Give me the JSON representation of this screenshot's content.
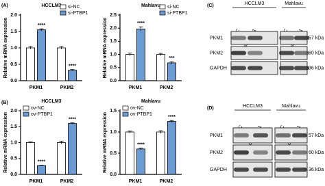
{
  "chart_data": [
    {
      "type": "bar",
      "title": "HCCLM3",
      "y_label": "Relative mRNA expression",
      "categories": [
        "PKM1",
        "PKM2"
      ],
      "series": [
        {
          "name": "si-NC",
          "color": "#ffffff",
          "values": [
            1.0,
            1.0
          ],
          "errors": [
            0.04,
            0.04
          ]
        },
        {
          "name": "si-PTBP1",
          "color": "#6b9bd2",
          "values": [
            1.55,
            0.32
          ],
          "errors": [
            0.03,
            0.02
          ]
        }
      ],
      "significance": [
        "****",
        "****"
      ],
      "legend": "upper right",
      "ylim": [
        0,
        2
      ],
      "yticks": [
        {
          "value": 0,
          "label": "0.0"
        },
        0.5,
        {
          "value": 1,
          "label": "1.0"
        },
        1.5,
        {
          "value": 2,
          "label": "2.0"
        }
      ]
    },
    {
      "type": "bar",
      "title": "Mahlavu",
      "y_label": "Relative mRNA expression",
      "categories": [
        "PKM1",
        "PKM2"
      ],
      "series": [
        {
          "name": "si-NC",
          "color": "#ffffff",
          "values": [
            1.0,
            1.0
          ],
          "errors": [
            0.05,
            0.04
          ]
        },
        {
          "name": "si-PTBP1",
          "color": "#6b9bd2",
          "values": [
            1.97,
            0.68
          ],
          "errors": [
            0.08,
            0.04
          ]
        }
      ],
      "significance": [
        "****",
        "***"
      ],
      "legend": "upper right",
      "ylim": [
        0,
        2.5
      ],
      "yticks": [
        {
          "value": 0,
          "label": "0.0"
        },
        0.5,
        {
          "value": 1,
          "label": "1.0"
        },
        1.5,
        {
          "value": 2,
          "label": "2.0"
        },
        2.5
      ]
    },
    {
      "type": "bar",
      "title": "HCCLM3",
      "y_label": "Relative mRNA expression",
      "categories": [
        "PKM1",
        "PKM2"
      ],
      "series": [
        {
          "name": "ov-NC",
          "color": "#ffffff",
          "values": [
            1.0,
            1.0
          ],
          "errors": [
            0.02,
            0.04
          ]
        },
        {
          "name": "ov-PTBP1",
          "color": "#6b9bd2",
          "values": [
            0.28,
            1.6
          ],
          "errors": [
            0.01,
            0.02
          ]
        }
      ],
      "significance": [
        "****",
        "****"
      ],
      "legend": "upper left",
      "ylim": [
        0,
        2
      ],
      "yticks": [
        {
          "value": 0,
          "label": "0.0"
        },
        0.5,
        {
          "value": 1,
          "label": "1.0"
        },
        1.5,
        {
          "value": 2,
          "label": "2.0"
        }
      ]
    },
    {
      "type": "bar",
      "title": "Mahlavu",
      "y_label": "Relative mRNA expression",
      "categories": [
        "PKM1",
        "PKM2"
      ],
      "series": [
        {
          "name": "ov-NC",
          "color": "#ffffff",
          "values": [
            1.0,
            1.0
          ],
          "errors": [
            0.02,
            0.03
          ]
        },
        {
          "name": "ov-PTBP1",
          "color": "#6b9bd2",
          "values": [
            0.6,
            1.25
          ],
          "errors": [
            0.02,
            0.02
          ]
        }
      ],
      "significance": [
        "****",
        "****"
      ],
      "legend": "upper left",
      "ylim": [
        0,
        1.5
      ],
      "yticks": [
        {
          "value": 0,
          "label": "0.0"
        },
        0.5,
        {
          "value": 1,
          "label": "1.0"
        },
        1.5
      ]
    }
  ],
  "panels": [
    "(A)",
    "(B)",
    "(C)",
    "(D)"
  ],
  "blots": [
    {
      "groups": [
        "HCCLM3",
        "Mahlavu"
      ],
      "lanes": [
        "si-NC",
        "si-PTBP1",
        "si-NC",
        "si-PTBP1"
      ],
      "rows": [
        "PKM1",
        "PKM2",
        "GAPDH"
      ],
      "sizes": [
        "57 kDa",
        "60 kDa",
        "36 kDa"
      ]
    },
    {
      "groups": [
        "HCCLM3",
        "Mahlavu"
      ],
      "lanes": [
        "ov-NC",
        "ov-PTBP1",
        "ov-NC",
        "ov-PTBP1"
      ],
      "rows": [
        "PKM1",
        "PKM2",
        "GAPDH"
      ],
      "sizes": [
        "57 kDa",
        "60 kDa",
        "36 kDa"
      ]
    }
  ]
}
